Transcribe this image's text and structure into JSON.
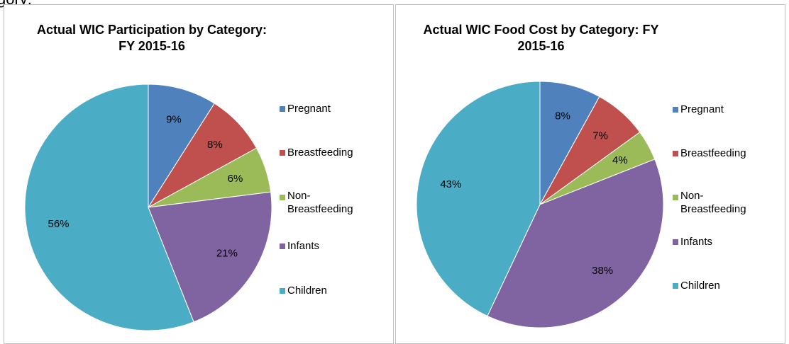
{
  "header": {
    "text": "gory:"
  },
  "chart_data": [
    {
      "type": "pie",
      "title": "Actual WIC Participation by Category: FY 2015-16",
      "categories": [
        "Pregnant",
        "Breastfeeding",
        "Non-Breastfeeding",
        "Infants",
        "Children"
      ],
      "values": [
        9,
        8,
        6,
        21,
        56
      ],
      "value_labels": [
        "9%",
        "8%",
        "6%",
        "21%",
        "56%"
      ],
      "colors": [
        "#4f81bd",
        "#c0504d",
        "#9bbb59",
        "#8064a2",
        "#4bacc6"
      ],
      "legend": "right"
    },
    {
      "type": "pie",
      "title": "Actual WIC Food Cost by Category: FY 2015-16",
      "categories": [
        "Pregnant",
        "Breastfeeding",
        "Non-Breastfeeding",
        "Infants",
        "Children"
      ],
      "values": [
        8,
        7,
        4,
        38,
        43
      ],
      "value_labels": [
        "8%",
        "7%",
        "4%",
        "38%",
        "43%"
      ],
      "colors": [
        "#4f81bd",
        "#c0504d",
        "#9bbb59",
        "#8064a2",
        "#4bacc6"
      ],
      "legend": "right"
    }
  ]
}
